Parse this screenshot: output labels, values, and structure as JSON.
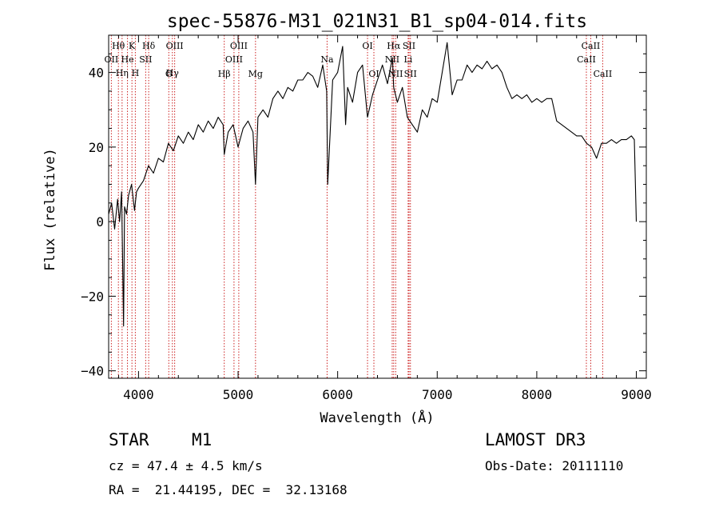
{
  "chart_data": {
    "type": "line",
    "title": "spec-55876-M31_021N31_B1_sp04-014.fits",
    "xlabel": "Wavelength (Å)",
    "ylabel": "Flux (relative)",
    "xlim": [
      3700,
      9100
    ],
    "ylim": [
      -42,
      50
    ],
    "xticks": [
      4000,
      5000,
      6000,
      7000,
      8000,
      9000
    ],
    "xtick_labels": [
      "4000",
      "5000",
      "6000",
      "7000",
      "8000",
      "9000"
    ],
    "yticks": [
      -40,
      -20,
      0,
      20,
      40
    ],
    "ytick_labels": [
      "−40",
      "−20",
      "0",
      "20",
      "40"
    ],
    "grid": false,
    "series": [
      {
        "name": "spectrum",
        "x": [
          3700,
          3730,
          3760,
          3790,
          3810,
          3830,
          3850,
          3860,
          3880,
          3900,
          3930,
          3960,
          3980,
          4000,
          4050,
          4100,
          4150,
          4200,
          4250,
          4300,
          4350,
          4400,
          4450,
          4500,
          4550,
          4600,
          4650,
          4700,
          4750,
          4800,
          4850,
          4861,
          4900,
          4950,
          5000,
          5050,
          5100,
          5150,
          5175,
          5200,
          5250,
          5300,
          5350,
          5400,
          5450,
          5500,
          5550,
          5600,
          5650,
          5700,
          5750,
          5800,
          5850,
          5890,
          5900,
          5950,
          6000,
          6050,
          6080,
          6100,
          6150,
          6200,
          6250,
          6300,
          6350,
          6400,
          6450,
          6500,
          6550,
          6563,
          6600,
          6650,
          6700,
          6750,
          6800,
          6850,
          6900,
          6950,
          7000,
          7050,
          7100,
          7150,
          7200,
          7250,
          7300,
          7350,
          7400,
          7450,
          7500,
          7550,
          7600,
          7650,
          7700,
          7750,
          7800,
          7850,
          7900,
          7950,
          8000,
          8050,
          8100,
          8150,
          8200,
          8250,
          8300,
          8350,
          8400,
          8450,
          8500,
          8550,
          8600,
          8650,
          8700,
          8750,
          8800,
          8850,
          8900,
          8950,
          8980,
          9000
        ],
        "y": [
          2,
          5,
          -2,
          6,
          0,
          8,
          -28,
          4,
          2,
          7,
          10,
          3,
          8,
          9,
          11,
          15,
          13,
          17,
          16,
          21,
          19,
          23,
          21,
          24,
          22,
          26,
          24,
          27,
          25,
          28,
          26,
          18,
          24,
          26,
          20,
          25,
          27,
          24,
          10,
          28,
          30,
          28,
          33,
          35,
          33,
          36,
          35,
          38,
          38,
          40,
          39,
          36,
          42,
          35,
          10,
          38,
          40,
          47,
          26,
          36,
          32,
          40,
          42,
          28,
          34,
          38,
          42,
          37,
          44,
          36,
          32,
          36,
          28,
          26,
          24,
          30,
          28,
          33,
          32,
          40,
          48,
          34,
          38,
          38,
          42,
          40,
          42,
          41,
          43,
          41,
          42,
          40,
          36,
          33,
          34,
          33,
          34,
          32,
          33,
          32,
          33,
          33,
          27,
          26,
          25,
          24,
          23,
          23,
          21,
          20,
          17,
          21,
          21,
          22,
          21,
          22,
          22,
          23,
          22,
          0
        ]
      }
    ],
    "lines": [
      {
        "label": "OII",
        "x": 3727,
        "row": 2
      },
      {
        "label": "Hθ",
        "x": 3798,
        "row": 1
      },
      {
        "label": "Hη",
        "x": 3835,
        "row": 3
      },
      {
        "label": "K",
        "x": 3934,
        "row": 1
      },
      {
        "label": "He",
        "x": 3889,
        "row": 2
      },
      {
        "label": "H",
        "x": 3968,
        "row": 3
      },
      {
        "label": "SII",
        "x": 4072,
        "row": 2
      },
      {
        "label": "Hδ",
        "x": 4102,
        "row": 1
      },
      {
        "label": "G",
        "x": 4304,
        "row": 4
      },
      {
        "label": "Hγ",
        "x": 4340,
        "row": 3
      },
      {
        "label": "OIII",
        "x": 4363,
        "row": 1
      },
      {
        "label": "Hβ",
        "x": 4861,
        "row": 4
      },
      {
        "label": "OIII",
        "x": 4959,
        "row": 2
      },
      {
        "label": "OIII",
        "x": 5007,
        "row": 1
      },
      {
        "label": "Mg",
        "x": 5175,
        "row": 4
      },
      {
        "label": "Na",
        "x": 5894,
        "row": 2
      },
      {
        "label": "OI",
        "x": 6300,
        "row": 1
      },
      {
        "label": "OI",
        "x": 6364,
        "row": 4
      },
      {
        "label": "NII",
        "x": 6548,
        "row": 2
      },
      {
        "label": "Hα",
        "x": 6563,
        "row": 1
      },
      {
        "label": "NII",
        "x": 6583,
        "row": 4
      },
      {
        "label": "Li",
        "x": 6708,
        "row": 2
      },
      {
        "label": "SII",
        "x": 6717,
        "row": 1
      },
      {
        "label": "SII",
        "x": 6731,
        "row": 4
      },
      {
        "label": "CaII",
        "x": 8498,
        "row": 2
      },
      {
        "label": "CaII",
        "x": 8542,
        "row": 1
      },
      {
        "label": "CaII",
        "x": 8662,
        "row": 4
      }
    ],
    "colors": {
      "axes": "#000000",
      "spectrum": "#000000",
      "lines": "#cc2222"
    }
  },
  "info": {
    "class": "STAR",
    "subclass": "M1",
    "survey": "LAMOST DR3",
    "redshift": "cz = 47.4 ± 4.5 km/s",
    "obs_date": "Obs-Date: 20111110",
    "coords": "RA =  21.44195, DEC =  32.13168"
  }
}
